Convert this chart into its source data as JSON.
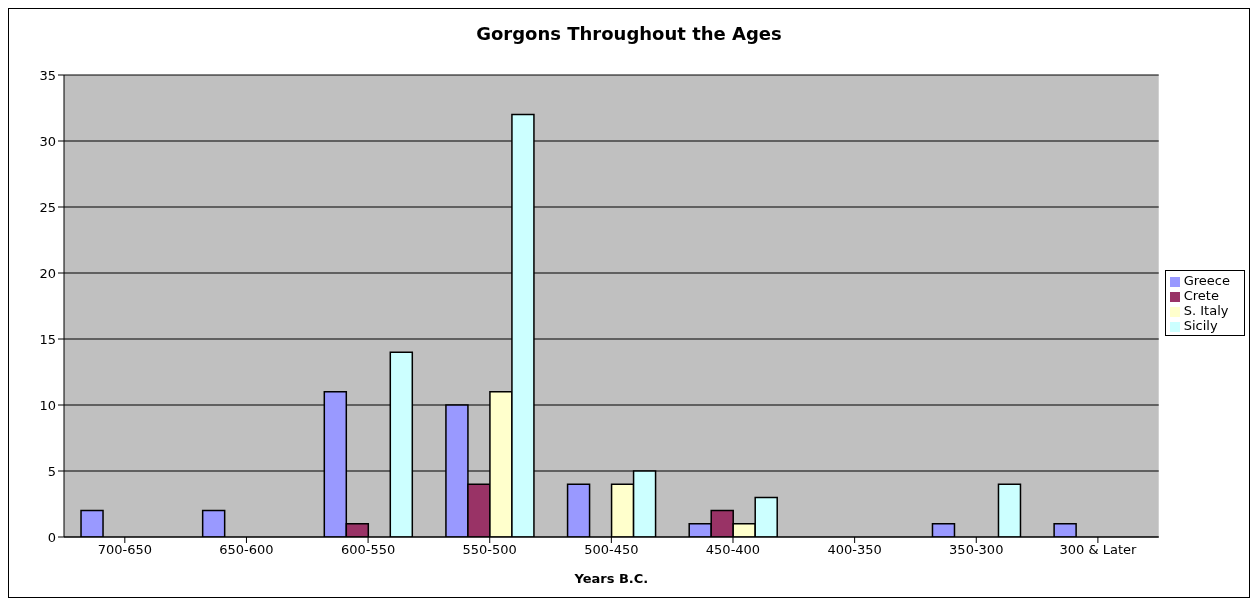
{
  "chart_data": {
    "type": "bar",
    "title": "Gorgons Throughout the Ages",
    "xlabel": "Years B.C.",
    "categories": [
      "700-650",
      "650-600",
      "600-550",
      "550-500",
      "500-450",
      "450-400",
      "400-350",
      "350-300",
      "300 & Later"
    ],
    "series": [
      {
        "name": "Greece",
        "color": "#9999ff",
        "values": [
          2,
          2,
          11,
          10,
          4,
          1,
          0,
          1,
          1
        ]
      },
      {
        "name": "Crete",
        "color": "#993366",
        "values": [
          0,
          0,
          1,
          4,
          0,
          2,
          0,
          0,
          0
        ]
      },
      {
        "name": "S. Italy",
        "color": "#ffffcc",
        "values": [
          0,
          0,
          0,
          11,
          4,
          1,
          0,
          0,
          0
        ]
      },
      {
        "name": "Sicily",
        "color": "#ccffff",
        "values": [
          0,
          0,
          14,
          32,
          5,
          3,
          0,
          4,
          0
        ]
      }
    ],
    "ylim": [
      0,
      35
    ],
    "yticks": [
      0,
      5,
      10,
      15,
      20,
      25,
      30,
      35
    ],
    "grid": "y",
    "legend": "right"
  }
}
